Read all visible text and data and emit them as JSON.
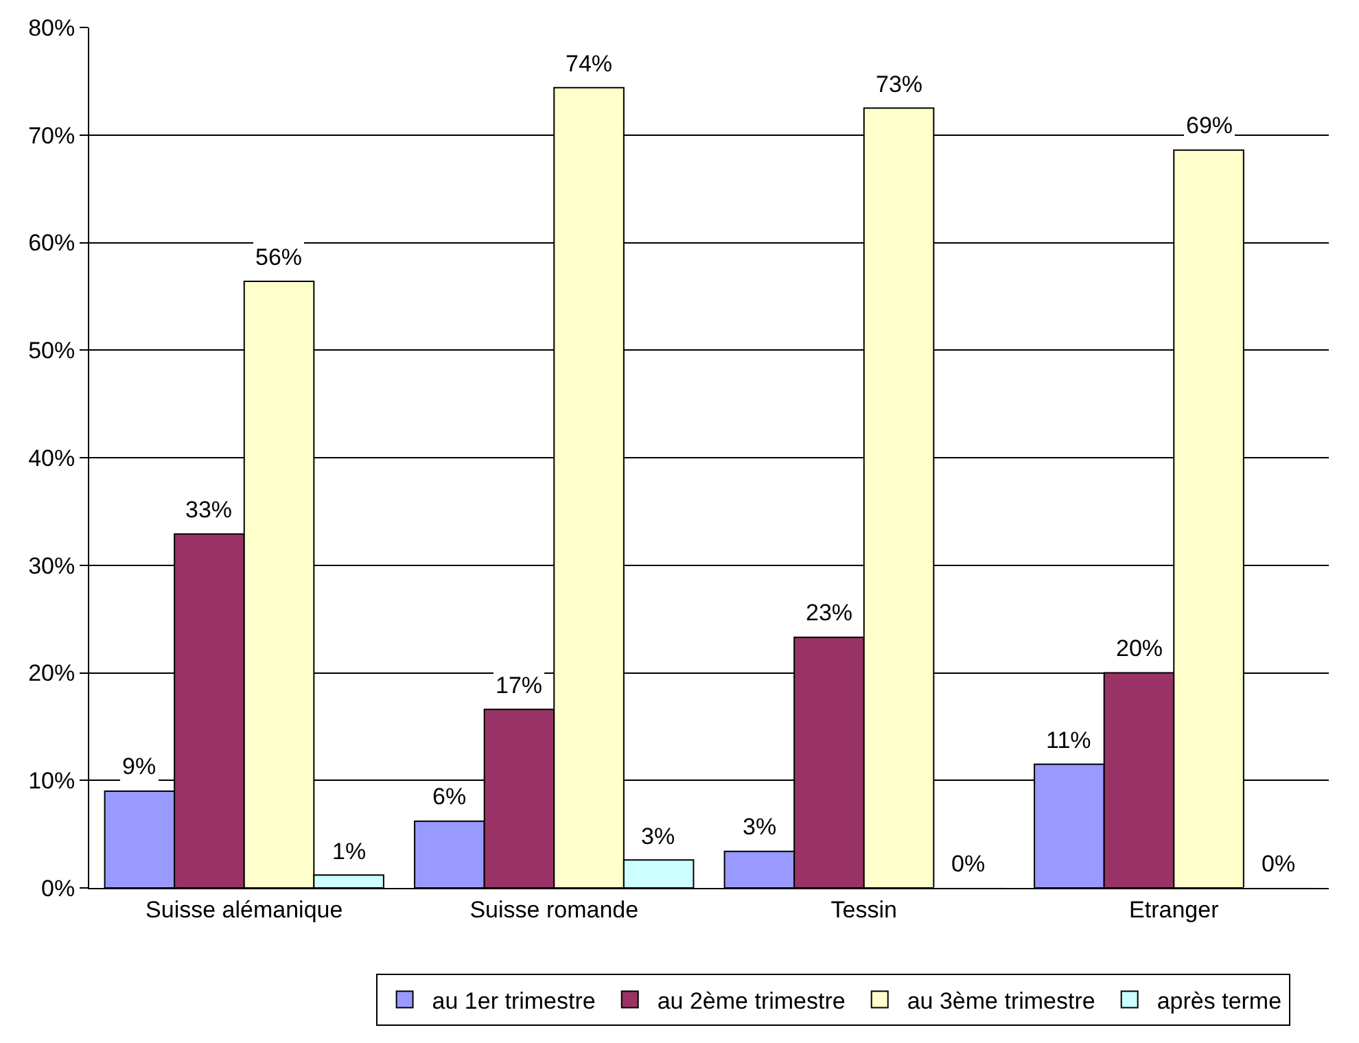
{
  "chart_data": {
    "type": "bar",
    "categories": [
      "Suisse alémanique",
      "Suisse romande",
      "Tessin",
      "Etranger"
    ],
    "series": [
      {
        "name": "au 1er trimestre",
        "color": "#9999ff",
        "values": [
          9.0,
          6.2,
          3.4,
          11.5
        ],
        "value_labels": [
          "9%",
          "6%",
          "3%",
          "11%"
        ]
      },
      {
        "name": "au 2ème trimestre",
        "color": "#993366",
        "values": [
          32.9,
          16.6,
          23.3,
          20.0
        ],
        "value_labels": [
          "33%",
          "17%",
          "23%",
          "20%"
        ]
      },
      {
        "name": "au 3ème trimestre",
        "color": "#ffffcc",
        "values": [
          56.4,
          74.4,
          72.5,
          68.6
        ],
        "value_labels": [
          "56%",
          "74%",
          "73%",
          "69%"
        ]
      },
      {
        "name": "après terme",
        "color": "#ccffff",
        "values": [
          1.2,
          2.6,
          0,
          0
        ],
        "value_labels": [
          "1%",
          "3%",
          "0%",
          "0%"
        ]
      }
    ],
    "ylim": [
      0,
      80
    ],
    "yticks": [
      {
        "value": 0,
        "label": "0%"
      },
      {
        "value": 10,
        "label": "10%"
      },
      {
        "value": 20,
        "label": "20%"
      },
      {
        "value": 30,
        "label": "30%"
      },
      {
        "value": 40,
        "label": "40%"
      },
      {
        "value": 50,
        "label": "50%"
      },
      {
        "value": 60,
        "label": "60%"
      },
      {
        "value": 70,
        "label": "70%"
      },
      {
        "value": 80,
        "label": "80%"
      }
    ],
    "grid": "y",
    "legend": "bottom"
  }
}
